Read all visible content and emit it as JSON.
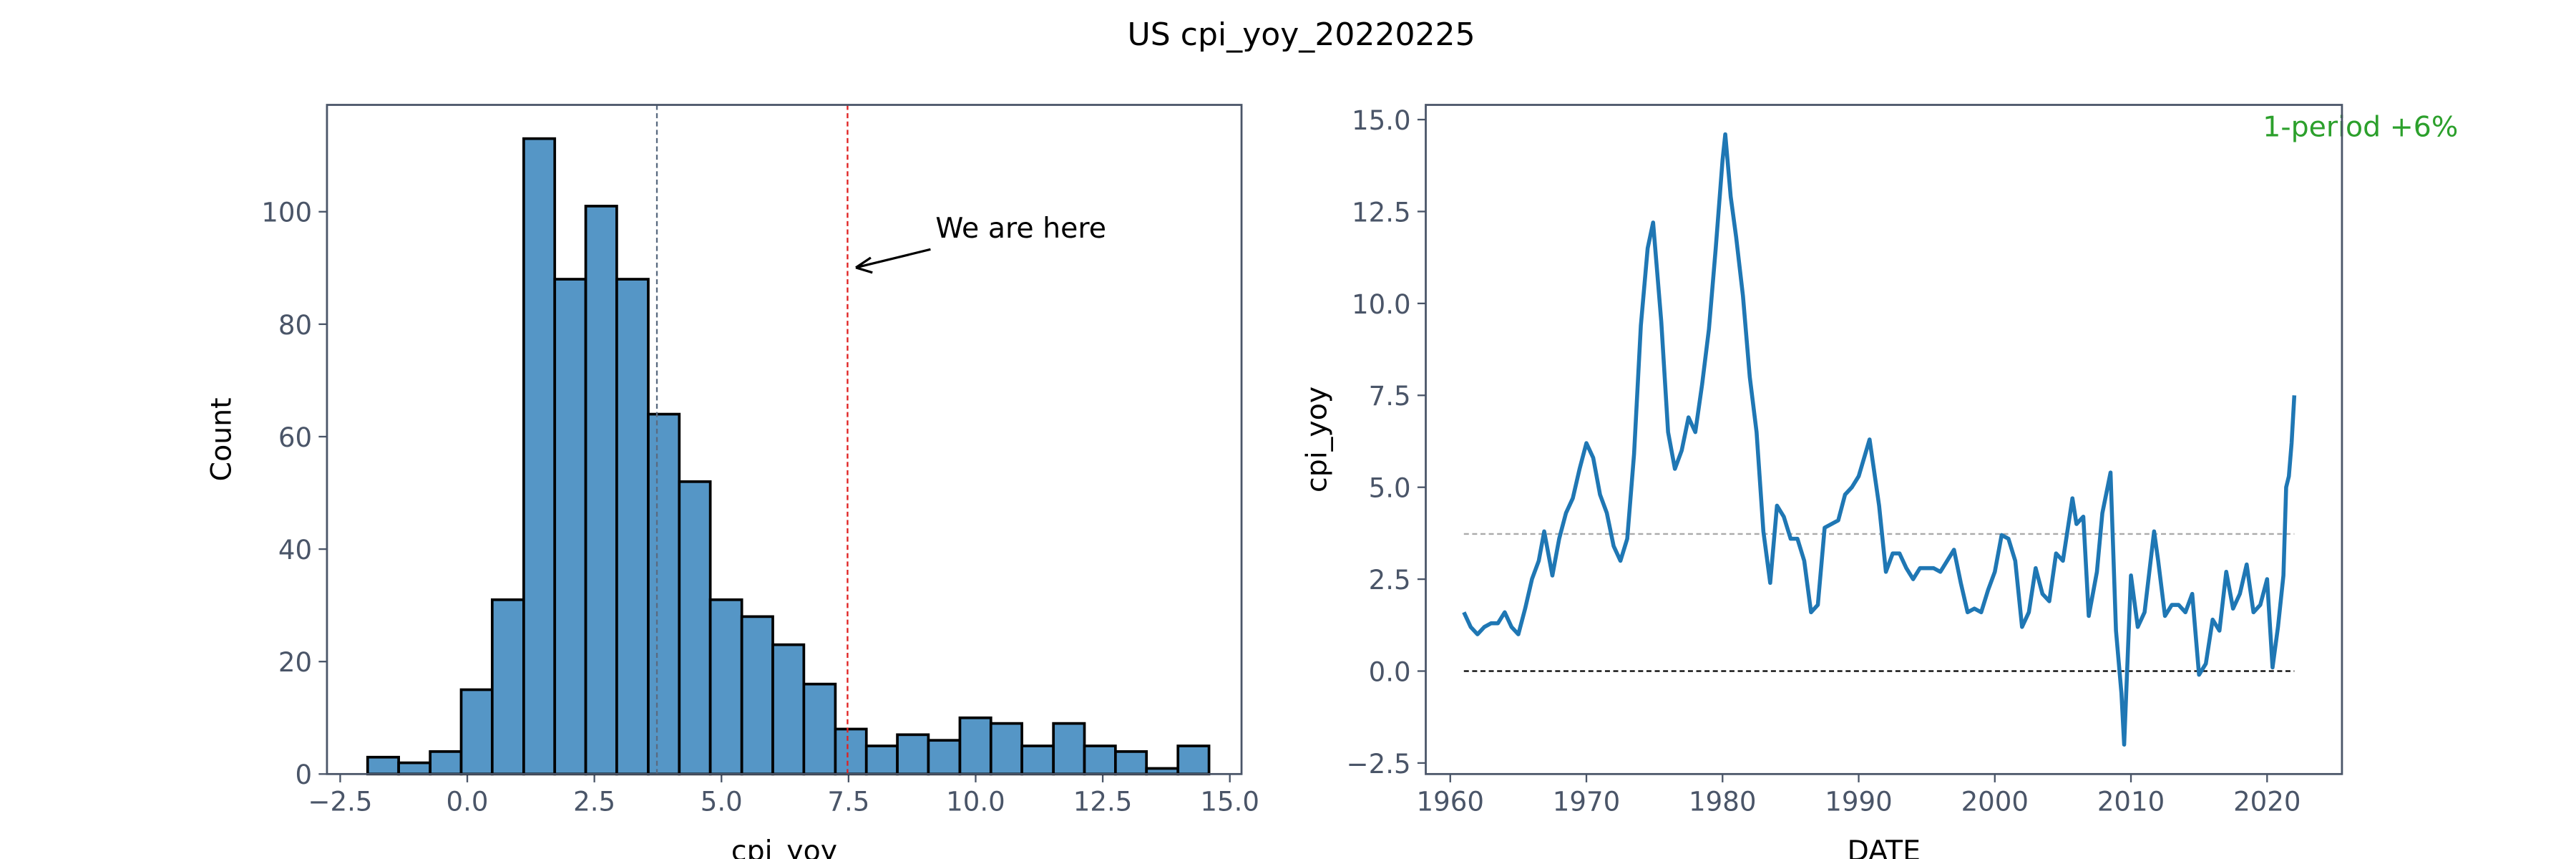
{
  "title": "US cpi_yoy_20220225",
  "chart_data": [
    {
      "type": "histogram",
      "xlabel": "cpi_yoy",
      "ylabel": "Count",
      "color": "#5596c6",
      "bins": [
        -1.96,
        -1.35,
        -0.73,
        -0.12,
        0.49,
        1.11,
        1.72,
        2.33,
        2.94,
        3.56,
        4.17,
        4.78,
        5.4,
        6.01,
        6.62,
        7.24,
        7.85,
        8.46,
        9.07,
        9.69,
        10.3,
        10.91,
        11.53,
        12.14,
        12.75,
        13.36,
        13.98,
        14.59
      ],
      "counts": [
        3,
        2,
        4,
        15,
        31,
        113,
        88,
        101,
        88,
        64,
        52,
        31,
        28,
        23,
        16,
        8,
        5,
        7,
        6,
        10,
        9,
        5,
        9,
        5,
        4,
        1,
        5
      ],
      "xlim": [
        -2.76,
        15.23
      ],
      "ylim": [
        0,
        119
      ],
      "xticks": [
        {
          "value": -2.5,
          "label": "−2.5"
        },
        {
          "value": 0,
          "label": "0.0"
        },
        2.5,
        {
          "value": 5,
          "label": "5.0"
        },
        7.5,
        {
          "value": 10,
          "label": "10.0"
        },
        12.5,
        {
          "value": 15,
          "label": "15.0"
        }
      ],
      "yticks": [
        0,
        20,
        40,
        60,
        80,
        100
      ],
      "mean": 3.73,
      "current": 7.48,
      "annotation": "We are here"
    },
    {
      "type": "line",
      "xlabel": "DATE",
      "ylabel": "cpi_yoy",
      "annotation": "1-period +6%",
      "xlim": [
        1958.2,
        2025.5
      ],
      "ylim": [
        -2.8,
        15.4
      ],
      "xticks": [
        1960,
        1970,
        1980,
        1990,
        2000,
        2010,
        2020
      ],
      "yticks": [
        {
          "value": -2.5,
          "label": "−2.5"
        },
        {
          "value": 0,
          "label": "0.0"
        },
        2.5,
        {
          "value": 5,
          "label": "5.0"
        },
        7.5,
        {
          "value": 10,
          "label": "10.0"
        },
        12.5,
        {
          "value": 15,
          "label": "15.0"
        }
      ],
      "hlines": [
        3.73,
        0
      ],
      "x": [
        1961.0,
        1961.5,
        1962,
        1962.5,
        1963,
        1963.5,
        1964,
        1964.5,
        1965,
        1965.5,
        1966,
        1966.5,
        1966.9,
        1967.5,
        1968,
        1968.5,
        1969,
        1969.5,
        1970,
        1970.5,
        1971,
        1971.5,
        1972,
        1972.5,
        1973,
        1973.5,
        1974,
        1974.5,
        1974.9,
        1975.5,
        1976,
        1976.5,
        1977,
        1977.5,
        1978,
        1978.5,
        1979,
        1979.5,
        1980.0,
        1980.2,
        1980.6,
        1981,
        1981.5,
        1982,
        1982.5,
        1983,
        1983.5,
        1984,
        1984.5,
        1985,
        1985.5,
        1986,
        1986.5,
        1987,
        1987.5,
        1988,
        1988.5,
        1989,
        1989.5,
        1990,
        1990.8,
        1991.5,
        1992,
        1992.5,
        1993,
        1993.5,
        1994,
        1994.5,
        1995,
        1995.5,
        1996,
        1996.5,
        1997,
        1997.5,
        1998,
        1998.5,
        1999,
        1999.5,
        2000,
        2000.5,
        2001,
        2001.5,
        2002,
        2002.5,
        2003,
        2003.5,
        2004,
        2004.5,
        2005,
        2005.7,
        2006,
        2006.5,
        2006.9,
        2007.5,
        2007.9,
        2008.5,
        2008.9,
        2009.3,
        2009.5,
        2010,
        2010.5,
        2011,
        2011.7,
        2012,
        2012.5,
        2013,
        2013.5,
        2014,
        2014.5,
        2015,
        2015.5,
        2016,
        2016.5,
        2017,
        2017.5,
        2018,
        2018.5,
        2019,
        2019.5,
        2020,
        2020.4,
        2020.8,
        2021.2,
        2021.4,
        2021.6,
        2021.8,
        2022.0
      ],
      "series": [
        {
          "name": "cpi_yoy",
          "color": "#1f77b4",
          "values": [
            1.6,
            1.2,
            1.0,
            1.2,
            1.3,
            1.3,
            1.6,
            1.2,
            1.0,
            1.7,
            2.5,
            3.0,
            3.8,
            2.6,
            3.6,
            4.3,
            4.7,
            5.5,
            6.2,
            5.8,
            4.8,
            4.3,
            3.4,
            3.0,
            3.6,
            5.9,
            9.4,
            11.5,
            12.2,
            9.5,
            6.5,
            5.5,
            6.0,
            6.9,
            6.5,
            7.8,
            9.3,
            11.5,
            13.9,
            14.6,
            12.9,
            11.8,
            10.2,
            8.0,
            6.5,
            3.8,
            2.4,
            4.5,
            4.2,
            3.6,
            3.6,
            3.0,
            1.6,
            1.8,
            3.9,
            4.0,
            4.1,
            4.8,
            5.0,
            5.3,
            6.3,
            4.5,
            2.7,
            3.2,
            3.2,
            2.8,
            2.5,
            2.8,
            2.8,
            2.8,
            2.7,
            3.0,
            3.3,
            2.4,
            1.6,
            1.7,
            1.6,
            2.2,
            2.7,
            3.7,
            3.6,
            3.0,
            1.2,
            1.6,
            2.8,
            2.1,
            1.9,
            3.2,
            3.0,
            4.7,
            4.0,
            4.2,
            1.5,
            2.7,
            4.3,
            5.4,
            1.1,
            -0.6,
            -2.0,
            2.6,
            1.2,
            1.6,
            3.8,
            3.0,
            1.5,
            1.8,
            1.8,
            1.6,
            2.1,
            -0.1,
            0.2,
            1.4,
            1.1,
            2.7,
            1.7,
            2.1,
            2.9,
            1.6,
            1.8,
            2.5,
            0.1,
            1.2,
            2.6,
            5.0,
            5.3,
            6.2,
            7.5
          ]
        }
      ]
    }
  ]
}
